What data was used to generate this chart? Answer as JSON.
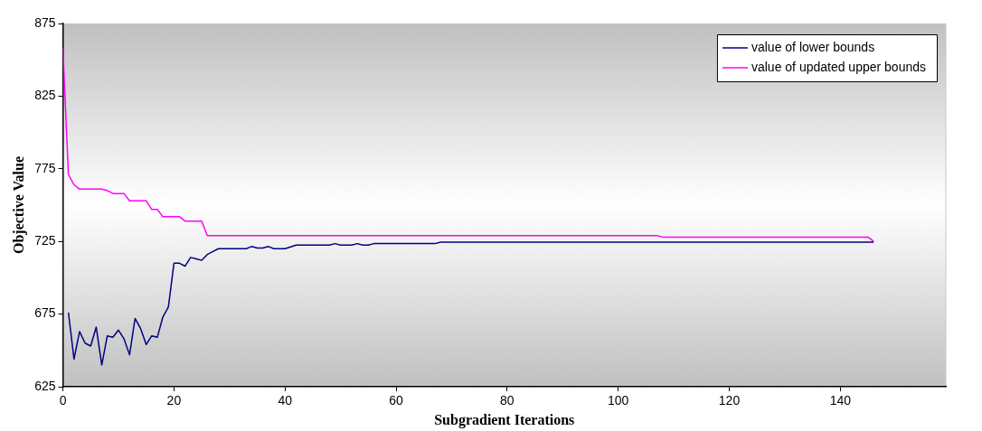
{
  "chart_data": {
    "type": "line",
    "xlabel": "Subgradient Iterations",
    "ylabel": "Objective Value",
    "xlim": [
      0,
      159
    ],
    "xticks": [
      0,
      20,
      40,
      60,
      80,
      100,
      120,
      140
    ],
    "ylim": [
      625,
      875
    ],
    "yticks": [
      625,
      675,
      725,
      775,
      825,
      875
    ],
    "grid": false,
    "legend": "top right",
    "marker": "none",
    "line_style": "solid",
    "series": [
      {
        "name": "value of lower bounds",
        "color": "#000080",
        "x": [
          1,
          2,
          3,
          4,
          5,
          6,
          7,
          8,
          9,
          10,
          11,
          12,
          13,
          14,
          15,
          16,
          17,
          18,
          19,
          20,
          21,
          22,
          23,
          24,
          25,
          26,
          27,
          28,
          33,
          34,
          35,
          36,
          37,
          38,
          40,
          42,
          48,
          49,
          50,
          52,
          53,
          54,
          55,
          56,
          67,
          68,
          146
        ],
        "values": [
          676,
          644,
          663,
          655,
          653,
          666,
          640,
          660,
          659,
          664,
          658,
          647,
          672,
          665,
          654,
          660,
          659,
          673,
          680,
          710,
          710,
          708,
          714,
          713,
          712,
          716,
          718,
          720,
          720,
          721.5,
          720.5,
          720.5,
          721.5,
          720,
          720,
          722.5,
          722.5,
          723.5,
          722.5,
          722.5,
          723.5,
          722.5,
          722.5,
          723.5,
          723.5,
          724.5,
          724.5
        ]
      },
      {
        "name": "value of updated upper bounds",
        "color": "#ff00ff",
        "x": [
          0,
          1,
          2,
          3,
          7,
          8,
          9,
          11,
          12,
          15,
          16,
          17,
          18,
          21,
          22,
          25,
          26,
          107,
          108,
          145,
          146
        ],
        "values": [
          858,
          771,
          764,
          761,
          761,
          760,
          758,
          758,
          753,
          753,
          747,
          747,
          742,
          742,
          739,
          739,
          729,
          729,
          728,
          728,
          725
        ]
      }
    ]
  }
}
